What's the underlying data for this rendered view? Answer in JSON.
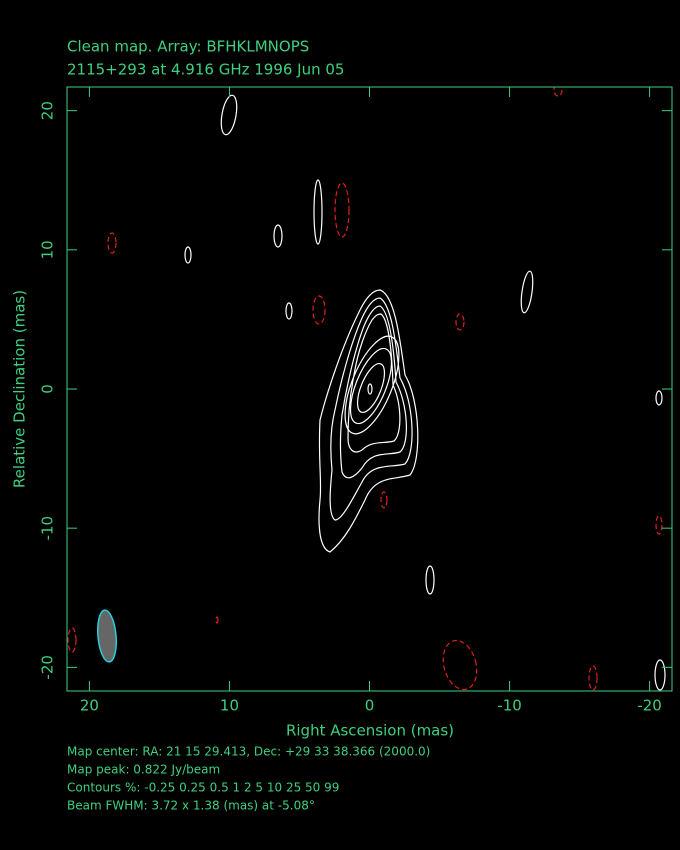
{
  "chart_data": {
    "type": "contour",
    "title": "Clean map.  Array: BFHKLMNOPS",
    "subtitle": "2115+293 at 4.916 GHz 1996 Jun 05",
    "xlabel": "Right Ascension  (mas)",
    "ylabel": "Relative Declination  (mas)",
    "xlim": [
      21.6,
      -21.6
    ],
    "ylim": [
      -21.7,
      21.7
    ],
    "xticks": [
      20,
      10,
      0,
      -10,
      -20
    ],
    "yticks": [
      20,
      10,
      0,
      -10,
      -20
    ],
    "annotations": [
      "Map center:  RA: 21 15 29.413,  Dec: +29 33 38.366 (2000.0)",
      "Map peak: 0.822 Jy/beam",
      "Contours %: -0.25 0.25 0.5 1 2 5 10 25 50 99",
      "Beam FWHM: 3.72 x 1.38 (mas) at -5.08°"
    ]
  }
}
